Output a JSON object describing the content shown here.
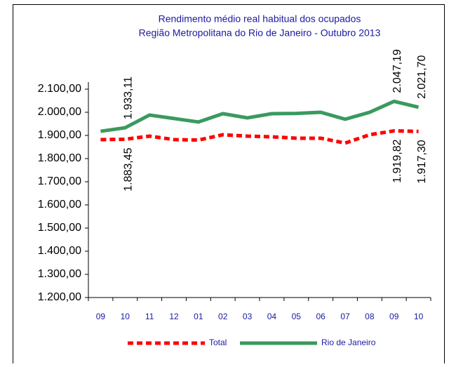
{
  "chart_data": {
    "type": "line",
    "title": "Rendimento médio real habitual dos ocupados",
    "subtitle": "Região Metropolitana do Rio de Janeiro - Outubro 2013",
    "categories": [
      "09",
      "10",
      "11",
      "12",
      "01",
      "02",
      "03",
      "04",
      "05",
      "06",
      "07",
      "08",
      "09",
      "10"
    ],
    "series": [
      {
        "name": "Total",
        "color": "#ff0000",
        "dashed": true,
        "values": [
          1882,
          1883.45,
          1897,
          1882,
          1880,
          1903,
          1897,
          1894,
          1888,
          1888,
          1867,
          1903,
          1919.82,
          1917.3
        ],
        "value_labels": [
          null,
          "1.883,45",
          null,
          null,
          null,
          null,
          null,
          null,
          null,
          null,
          null,
          null,
          "1.919,82",
          "1.917,30"
        ]
      },
      {
        "name": "Rio de Janeiro",
        "color": "#3a9a5e",
        "dashed": false,
        "values": [
          1918,
          1933.11,
          1988,
          1973,
          1958,
          1994,
          1976,
          1994,
          1995,
          2000,
          1970,
          2000,
          2047.19,
          2021.7
        ],
        "value_labels": [
          null,
          "1.933,11",
          null,
          null,
          null,
          null,
          null,
          null,
          null,
          null,
          null,
          null,
          "2.047,19",
          "2.021,70"
        ]
      }
    ],
    "ylim": [
      1200,
      2100
    ],
    "yticks": [
      {
        "value": 1200,
        "label": "1.200,00"
      },
      {
        "value": 1300,
        "label": "1.300,00"
      },
      {
        "value": 1400,
        "label": "1.400,00"
      },
      {
        "value": 1500,
        "label": "1.500,00"
      },
      {
        "value": 1600,
        "label": "1.600,00"
      },
      {
        "value": 1700,
        "label": "1.700,00"
      },
      {
        "value": 1800,
        "label": "1.800,00"
      },
      {
        "value": 1900,
        "label": "1.900,00"
      },
      {
        "value": 2000,
        "label": "2.000,00"
      },
      {
        "value": 2100,
        "label": "2.100,00"
      }
    ],
    "legend": "bottom"
  }
}
